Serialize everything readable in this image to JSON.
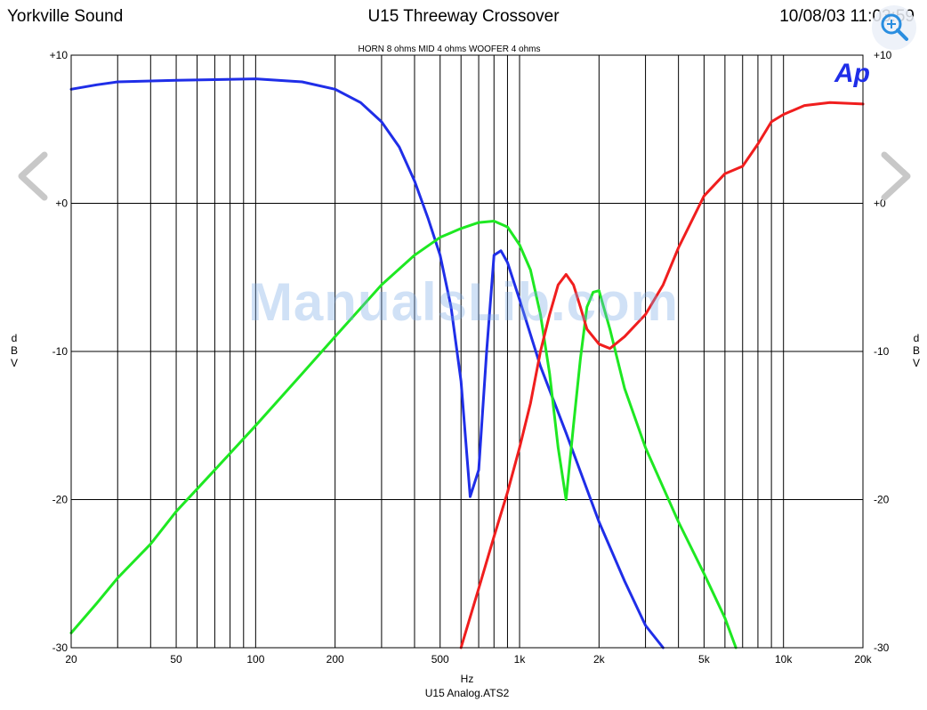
{
  "header": {
    "left": "Yorkville Sound",
    "center": "U15 Threeway Crossover",
    "right": "10/08/03 11:03:59"
  },
  "watermark": "ManualsLib.com",
  "logo": "Ap",
  "chart_data": {
    "type": "line",
    "subtitle": "HORN 8 ohms MID 4 ohms WOOFER 4 ohms",
    "xlabel": "Hz",
    "footer": "U15 Analog.ATS2",
    "ylabel": "dBV",
    "xscale": "log",
    "xlim": [
      20,
      20000
    ],
    "ylim": [
      -30,
      10
    ],
    "x_ticks": [
      20,
      50,
      100,
      200,
      500,
      1000,
      2000,
      5000,
      10000,
      20000
    ],
    "x_tick_labels": [
      "20",
      "50",
      "100",
      "200",
      "500",
      "1k",
      "2k",
      "5k",
      "10k",
      "20k"
    ],
    "y_ticks": [
      10,
      0,
      -10,
      -20,
      -30
    ],
    "y_tick_labels": [
      "+10",
      "+0",
      "-10",
      "-20",
      "-30"
    ],
    "grid": true,
    "series": [
      {
        "color": "#1f2ee8",
        "points": [
          [
            20,
            7.7
          ],
          [
            25,
            8.0
          ],
          [
            30,
            8.2
          ],
          [
            50,
            8.3
          ],
          [
            100,
            8.4
          ],
          [
            150,
            8.2
          ],
          [
            200,
            7.7
          ],
          [
            250,
            6.8
          ],
          [
            300,
            5.5
          ],
          [
            350,
            3.8
          ],
          [
            400,
            1.5
          ],
          [
            450,
            -1.0
          ],
          [
            500,
            -3.5
          ],
          [
            550,
            -7.0
          ],
          [
            600,
            -12.0
          ],
          [
            650,
            -19.8
          ],
          [
            700,
            -18.0
          ],
          [
            750,
            -10.0
          ],
          [
            800,
            -3.5
          ],
          [
            850,
            -3.2
          ],
          [
            900,
            -4.0
          ],
          [
            1000,
            -6.5
          ],
          [
            1200,
            -11.0
          ],
          [
            1500,
            -15.5
          ],
          [
            2000,
            -21.5
          ],
          [
            2500,
            -25.5
          ],
          [
            3000,
            -28.5
          ],
          [
            3500,
            -30.0
          ]
        ]
      },
      {
        "color": "#1ee822",
        "points": [
          [
            20,
            -29.0
          ],
          [
            25,
            -27.0
          ],
          [
            30,
            -25.3
          ],
          [
            40,
            -23.0
          ],
          [
            50,
            -20.8
          ],
          [
            70,
            -18.0
          ],
          [
            100,
            -15.0
          ],
          [
            150,
            -11.5
          ],
          [
            200,
            -9.0
          ],
          [
            300,
            -5.5
          ],
          [
            400,
            -3.5
          ],
          [
            500,
            -2.3
          ],
          [
            600,
            -1.7
          ],
          [
            700,
            -1.3
          ],
          [
            800,
            -1.2
          ],
          [
            900,
            -1.6
          ],
          [
            1000,
            -2.8
          ],
          [
            1100,
            -4.5
          ],
          [
            1200,
            -7.5
          ],
          [
            1300,
            -11.5
          ],
          [
            1400,
            -16.5
          ],
          [
            1500,
            -20.0
          ],
          [
            1600,
            -15.0
          ],
          [
            1700,
            -10.5
          ],
          [
            1800,
            -7.0
          ],
          [
            1900,
            -6.0
          ],
          [
            2000,
            -5.9
          ],
          [
            2200,
            -8.5
          ],
          [
            2500,
            -12.5
          ],
          [
            3000,
            -16.5
          ],
          [
            4000,
            -21.5
          ],
          [
            5000,
            -25.0
          ],
          [
            6000,
            -28.0
          ],
          [
            6600,
            -30.0
          ]
        ]
      },
      {
        "color": "#f01e1e",
        "points": [
          [
            600,
            -30.0
          ],
          [
            700,
            -26.0
          ],
          [
            800,
            -22.5
          ],
          [
            900,
            -19.5
          ],
          [
            1000,
            -16.5
          ],
          [
            1100,
            -13.5
          ],
          [
            1200,
            -10.0
          ],
          [
            1300,
            -7.5
          ],
          [
            1400,
            -5.5
          ],
          [
            1500,
            -4.8
          ],
          [
            1600,
            -5.5
          ],
          [
            1700,
            -7.0
          ],
          [
            1800,
            -8.5
          ],
          [
            2000,
            -9.5
          ],
          [
            2200,
            -9.8
          ],
          [
            2500,
            -9.0
          ],
          [
            3000,
            -7.5
          ],
          [
            3500,
            -5.5
          ],
          [
            4000,
            -3.0
          ],
          [
            5000,
            0.5
          ],
          [
            6000,
            2.0
          ],
          [
            7000,
            2.5
          ],
          [
            8000,
            4.0
          ],
          [
            9000,
            5.5
          ],
          [
            10000,
            6.0
          ],
          [
            12000,
            6.6
          ],
          [
            15000,
            6.8
          ],
          [
            20000,
            6.7
          ]
        ]
      }
    ]
  }
}
